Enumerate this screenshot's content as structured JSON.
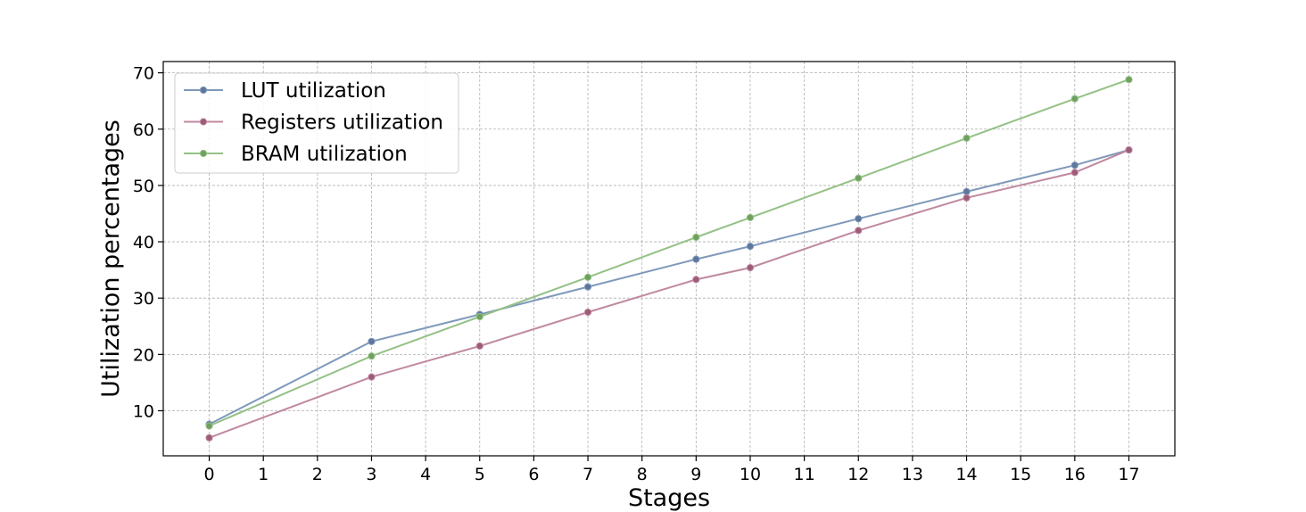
{
  "chart_data": {
    "type": "line",
    "title": "",
    "xlabel": "Stages",
    "ylabel": "Utilization percentages",
    "xlim": [
      -0.85,
      17.85
    ],
    "ylim": [
      2,
      72
    ],
    "xticks": [
      0,
      1,
      2,
      3,
      4,
      5,
      6,
      7,
      8,
      9,
      10,
      11,
      12,
      13,
      14,
      15,
      16,
      17
    ],
    "yticks": [
      10,
      20,
      30,
      40,
      50,
      60,
      70
    ],
    "grid": true,
    "legend_position": "top-left",
    "x": [
      0,
      3,
      5,
      7,
      9,
      10,
      12,
      14,
      16,
      17
    ],
    "series": [
      {
        "name": "LUT utilization",
        "color": "#7f99bb",
        "marker_color": "#5e759c",
        "values": [
          7.6,
          22.3,
          27.1,
          32.0,
          36.9,
          39.2,
          44.1,
          48.9,
          53.6,
          56.3
        ]
      },
      {
        "name": "Registers utilization",
        "color": "#c088a0",
        "marker_color": "#9c5c78",
        "values": [
          5.2,
          16.0,
          21.5,
          27.5,
          33.3,
          35.4,
          42.0,
          47.8,
          52.3,
          56.3
        ]
      },
      {
        "name": "BRAM utilization",
        "color": "#94c186",
        "marker_color": "#6fa05e",
        "values": [
          7.3,
          19.7,
          26.7,
          33.7,
          40.8,
          44.3,
          51.3,
          58.4,
          65.4,
          68.8
        ]
      }
    ]
  }
}
